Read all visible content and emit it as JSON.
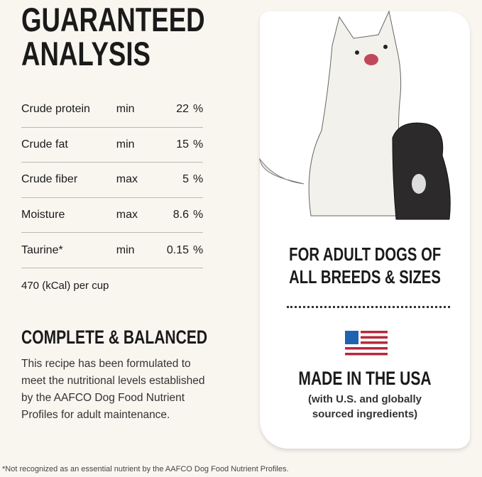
{
  "title_lines": [
    "GUARANTEED",
    "ANALYSIS"
  ],
  "analysis": [
    {
      "nutrient": "Crude protein",
      "qualifier": "min",
      "value": "22",
      "unit": "%"
    },
    {
      "nutrient": "Crude fat",
      "qualifier": "min",
      "value": "15",
      "unit": "%"
    },
    {
      "nutrient": "Crude fiber",
      "qualifier": "max",
      "value": "5",
      "unit": "%"
    },
    {
      "nutrient": "Moisture",
      "qualifier": "max",
      "value": "8.6",
      "unit": "%"
    },
    {
      "nutrient": "Taurine*",
      "qualifier": "min",
      "value": "0.15",
      "unit": "%"
    }
  ],
  "calories": "470 (kCal) per cup",
  "complete_heading": "COMPLETE & BALANCED",
  "complete_text": "This recipe has been formulated to meet the nutritional levels established by the AAFCO Dog Food Nutrient Profiles for adult maintenance.",
  "card": {
    "audience_lines": [
      "FOR ADULT DOGS OF",
      "ALL BREEDS & SIZES"
    ],
    "flag_icon": "us-flag-icon",
    "made_in": "MADE IN THE USA",
    "made_in_sub_lines": [
      "(with U.S. and globally",
      "sourced ingredients)"
    ]
  },
  "footnote": "*Not recognized as an essential nutrient by the AAFCO Dog Food Nutrient Profiles.",
  "colors": {
    "background": "#f9f6f0",
    "flag_blue": "#1f63b0",
    "flag_red": "#b8283a"
  }
}
